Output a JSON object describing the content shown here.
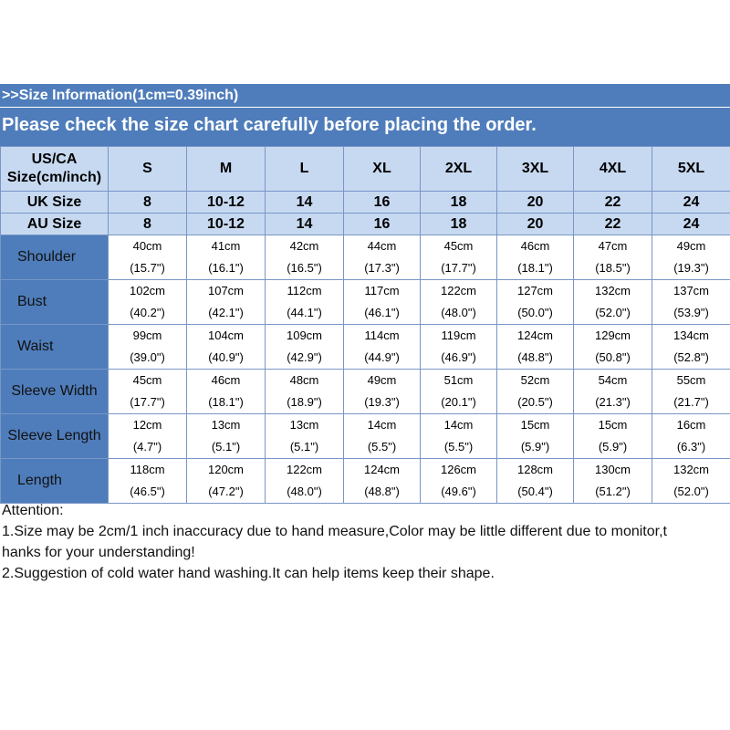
{
  "header": {
    "info": ">>Size Information(1cm=0.39inch)",
    "notice": "Please check the size chart carefully before placing the order."
  },
  "table": {
    "corner_line1": "US/CA",
    "corner_line2": "Size(cm/inch)",
    "sizes": [
      "S",
      "M",
      "L",
      "XL",
      "2XL",
      "3XL",
      "4XL",
      "5XL"
    ],
    "uk_label": "UK Size",
    "uk_sizes": [
      "8",
      "10-12",
      "14",
      "16",
      "18",
      "20",
      "22",
      "24"
    ],
    "au_label": "AU Size",
    "au_sizes": [
      "8",
      "10-12",
      "14",
      "16",
      "18",
      "20",
      "22",
      "24"
    ],
    "rows": [
      {
        "label": "Shoulder",
        "cm": [
          "40cm",
          "41cm",
          "42cm",
          "44cm",
          "45cm",
          "46cm",
          "47cm",
          "49cm"
        ],
        "inch": [
          "(15.7\")",
          "(16.1\")",
          "(16.5\")",
          "(17.3\")",
          "(17.7\")",
          "(18.1\")",
          "(18.5\")",
          "(19.3\")"
        ]
      },
      {
        "label": "Bust",
        "cm": [
          "102cm",
          "107cm",
          "112cm",
          "117cm",
          "122cm",
          "127cm",
          "132cm",
          "137cm"
        ],
        "inch": [
          "(40.2\")",
          "(42.1\")",
          "(44.1\")",
          "(46.1\")",
          "(48.0\")",
          "(50.0\")",
          "(52.0\")",
          "(53.9\")"
        ]
      },
      {
        "label": "Waist",
        "cm": [
          "99cm",
          "104cm",
          "109cm",
          "114cm",
          "119cm",
          "124cm",
          "129cm",
          "134cm"
        ],
        "inch": [
          "(39.0\")",
          "(40.9\")",
          "(42.9\")",
          "(44.9\")",
          "(46.9\")",
          "(48.8\")",
          "(50.8\")",
          "(52.8\")"
        ]
      },
      {
        "label": "Sleeve Width",
        "cm": [
          "45cm",
          "46cm",
          "48cm",
          "49cm",
          "51cm",
          "52cm",
          "54cm",
          "55cm"
        ],
        "inch": [
          "(17.7\")",
          "(18.1\")",
          "(18.9\")",
          "(19.3\")",
          "(20.1\")",
          "(20.5\")",
          "(21.3\")",
          "(21.7\")"
        ]
      },
      {
        "label": "Sleeve Length",
        "cm": [
          "12cm",
          "13cm",
          "13cm",
          "14cm",
          "14cm",
          "15cm",
          "15cm",
          "16cm"
        ],
        "inch": [
          "(4.7\")",
          "(5.1\")",
          "(5.1\")",
          "(5.5\")",
          "(5.5\")",
          "(5.9\")",
          "(5.9\")",
          "(6.3\")"
        ]
      },
      {
        "label": "Length",
        "cm": [
          "118cm",
          "120cm",
          "122cm",
          "124cm",
          "126cm",
          "128cm",
          "130cm",
          "132cm"
        ],
        "inch": [
          "(46.5\")",
          "(47.2\")",
          "(48.0\")",
          "(48.8\")",
          "(49.6\")",
          "(50.4\")",
          "(51.2\")",
          "(52.0\")"
        ]
      }
    ]
  },
  "notes": {
    "title": "Attention:",
    "line1": "1.Size may be 2cm/1 inch inaccuracy due to hand measure,Color may be little different due to monitor,t",
    "line2": "hanks for your understanding!",
    "line3": "2.Suggestion of cold water hand washing.It can help items keep their shape."
  },
  "colors": {
    "header_blue": "#4f7dbb",
    "light_blue": "#c7d9f1",
    "border": "#7896c6"
  }
}
